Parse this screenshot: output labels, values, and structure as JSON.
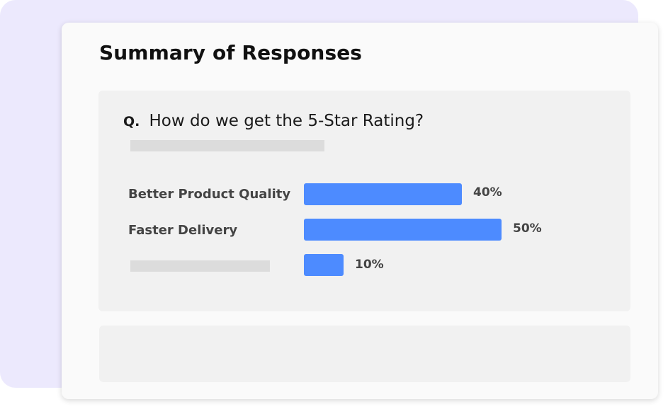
{
  "summary": {
    "title": "Summary of Responses"
  },
  "question": {
    "prefix": "Q.",
    "text": "How do we get the 5-Star Rating?"
  },
  "options": [
    {
      "label": "Better Product Quality",
      "percent_label": "40%",
      "value": 40
    },
    {
      "label": "Faster Delivery",
      "percent_label": "50%",
      "value": 50
    },
    {
      "label": "",
      "percent_label": "10%",
      "value": 10
    }
  ],
  "colors": {
    "bar": "#4d8bff",
    "background_accent": "#ece9fd"
  }
}
